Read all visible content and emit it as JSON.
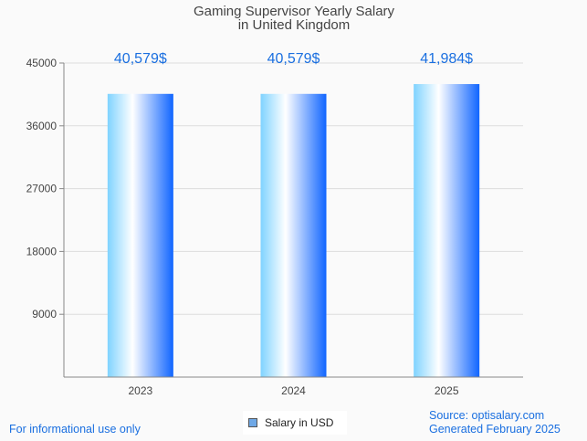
{
  "chart_data": {
    "type": "bar",
    "title": "Gaming Supervisor Yearly Salary",
    "subtitle": "in United Kingdom",
    "categories": [
      "2023",
      "2024",
      "2025"
    ],
    "series": [
      {
        "name": "Salary in USD",
        "values": [
          40579,
          40579,
          41984
        ]
      }
    ],
    "data_labels": [
      "40,579$",
      "40,579$",
      "41,984$"
    ],
    "y_ticks": [
      "9000",
      "18000",
      "27000",
      "36000",
      "45000"
    ],
    "ylim": [
      0,
      45000
    ],
    "xlabel": "",
    "ylabel": "",
    "grid": true,
    "legend_position": "bottom-center"
  },
  "footer": {
    "left": "For informational use only",
    "source": "Source: optisalary.com",
    "generated": "Generated February 2025"
  },
  "colors": {
    "label": "#1a6fe0",
    "bar_light": "#7fd3ff",
    "bar_dark": "#1065ff"
  }
}
